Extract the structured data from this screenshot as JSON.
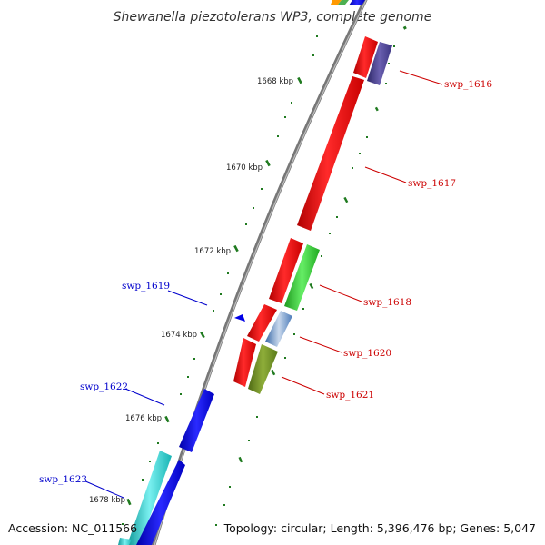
{
  "title": "Shewanella piezotolerans WP3, complete genome",
  "footer": {
    "accession": "Accession: NC_011566",
    "summary": "Topology: circular; Length: 5,396,476 bp; Genes: 5,047"
  },
  "ticks": [
    "1668 kbp",
    "1670 kbp",
    "1672 kbp",
    "1674 kbp",
    "1676 kbp",
    "1678 kbp"
  ],
  "gene_labels": {
    "swp_1616": "swp_1616",
    "swp_1617": "swp_1617",
    "swp_1618": "swp_1618",
    "swp_1619": "swp_1619",
    "swp_1620": "swp_1620",
    "swp_1621": "swp_1621",
    "swp_1622": "swp_1622",
    "swp_1623": "swp_1623"
  },
  "colors": {
    "backbone": "#8a8a8a",
    "tick": "#1f7a1f",
    "label_forward": "#cc0000",
    "label_reverse": "#0000cc",
    "red": "#ff1010",
    "dark_purple": "#4a3f8f",
    "green": "#33cc33",
    "steel_blue": "#5b8fc9",
    "olive": "#6b8e23",
    "blue": "#0a0ae6",
    "cyan": "#20c8c8"
  }
}
